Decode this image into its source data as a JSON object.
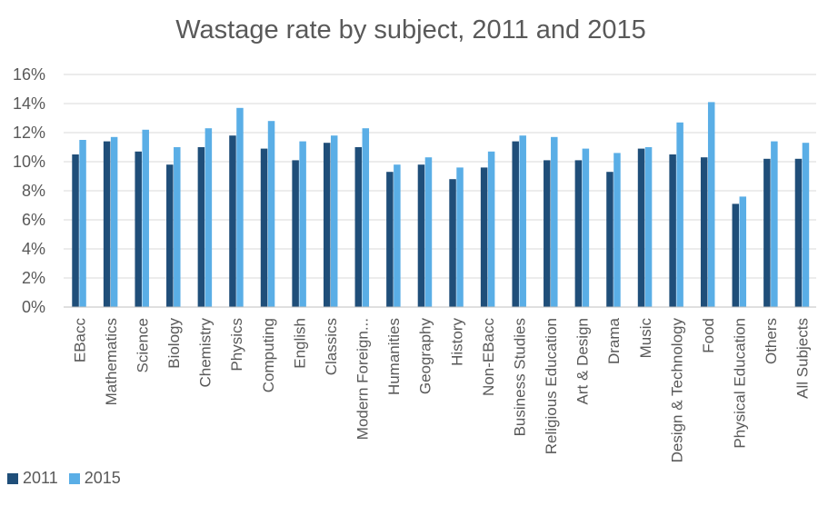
{
  "chart_data": {
    "type": "bar",
    "title": "Wastage rate by subject, 2011 and 2015",
    "xlabel": "",
    "ylabel": "",
    "ylim": [
      0,
      16
    ],
    "yticks": [
      "0%",
      "2%",
      "4%",
      "6%",
      "8%",
      "10%",
      "12%",
      "14%",
      "16%"
    ],
    "grid": true,
    "legend_position": "bottom-left",
    "categories": [
      "EBacc",
      "Mathematics",
      "Science",
      "Biology",
      "Chemistry",
      "Physics",
      "Computing",
      "English",
      "Classics",
      "Modern Foreign...",
      "Humanities",
      "Geography",
      "History",
      "Non-EBacc",
      "Business Studies",
      "Religious Education",
      "Art & Design",
      "Drama",
      "Music",
      "Design & Technology",
      "Food",
      "Physical Education",
      "Others",
      "All Subjects"
    ],
    "series": [
      {
        "name": "2011",
        "color": "#1f4e79",
        "values": [
          10.5,
          11.4,
          10.7,
          9.8,
          11.0,
          11.8,
          10.9,
          10.1,
          11.3,
          11.0,
          9.3,
          9.8,
          8.8,
          9.6,
          11.4,
          10.1,
          10.1,
          9.3,
          10.9,
          10.5,
          10.3,
          7.1,
          10.2,
          10.2
        ]
      },
      {
        "name": "2015",
        "color": "#5aaee6",
        "values": [
          11.5,
          11.7,
          12.2,
          11.0,
          12.3,
          13.7,
          12.8,
          11.4,
          11.8,
          12.3,
          9.8,
          10.3,
          9.6,
          10.7,
          11.8,
          11.7,
          10.9,
          10.6,
          11.0,
          12.7,
          14.1,
          7.6,
          11.4,
          11.3
        ]
      }
    ]
  }
}
